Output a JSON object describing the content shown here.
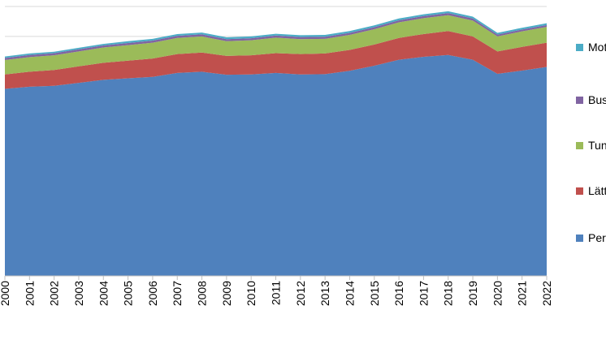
{
  "chart_data": {
    "type": "area",
    "stacked": true,
    "x": [
      "2000",
      "2001",
      "2002",
      "2003",
      "2004",
      "2005",
      "2006",
      "2007",
      "2008",
      "2009",
      "2010",
      "2011",
      "2012",
      "2013",
      "2014",
      "2015",
      "2016",
      "2017",
      "2018",
      "2019",
      "2020",
      "2021",
      "2022"
    ],
    "series": [
      {
        "name": "Personbilar",
        "color": "#4F81BD",
        "values": [
          62.5,
          63.2,
          63.5,
          64.5,
          65.5,
          66.0,
          66.5,
          67.8,
          68.2,
          67.2,
          67.3,
          67.8,
          67.3,
          67.4,
          68.5,
          70.2,
          72.2,
          73.2,
          73.8,
          72.2,
          67.5,
          68.6,
          69.8
        ]
      },
      {
        "name": "Lätta lastbilar",
        "color": "#C0504D",
        "values": [
          4.8,
          5.0,
          5.3,
          5.5,
          5.7,
          5.9,
          6.1,
          6.3,
          6.4,
          6.3,
          6.4,
          6.6,
          6.8,
          6.9,
          7.0,
          7.1,
          7.3,
          7.6,
          8.0,
          7.8,
          7.5,
          7.9,
          8.1
        ]
      },
      {
        "name": "Tunga lastbilar",
        "color": "#9BBB59",
        "values": [
          4.8,
          4.9,
          4.9,
          5.0,
          5.1,
          5.2,
          5.3,
          5.4,
          5.4,
          4.9,
          5.0,
          5.2,
          5.0,
          4.9,
          5.0,
          5.1,
          5.2,
          5.3,
          5.3,
          5.3,
          5.0,
          5.2,
          5.3
        ]
      },
      {
        "name": "Bussar",
        "color": "#8064A2",
        "values": [
          0.7,
          0.7,
          0.7,
          0.7,
          0.7,
          0.7,
          0.7,
          0.7,
          0.7,
          0.7,
          0.7,
          0.7,
          0.7,
          0.7,
          0.7,
          0.7,
          0.7,
          0.7,
          0.7,
          0.7,
          0.6,
          0.6,
          0.6
        ]
      },
      {
        "name": "Motorcyklar",
        "color": "#4BACC6",
        "values": [
          0.5,
          0.5,
          0.5,
          0.5,
          0.5,
          0.6,
          0.6,
          0.6,
          0.6,
          0.6,
          0.6,
          0.6,
          0.6,
          0.6,
          0.6,
          0.6,
          0.6,
          0.6,
          0.6,
          0.6,
          0.6,
          0.6,
          0.6
        ]
      }
    ],
    "ylim": [
      0,
      90
    ],
    "grid": true,
    "legend_position": "right",
    "legend_order": [
      "Motorcyklar",
      "Bussar",
      "Tunga lastbilar",
      "Lätta lastbilar",
      "Personbilar"
    ]
  }
}
